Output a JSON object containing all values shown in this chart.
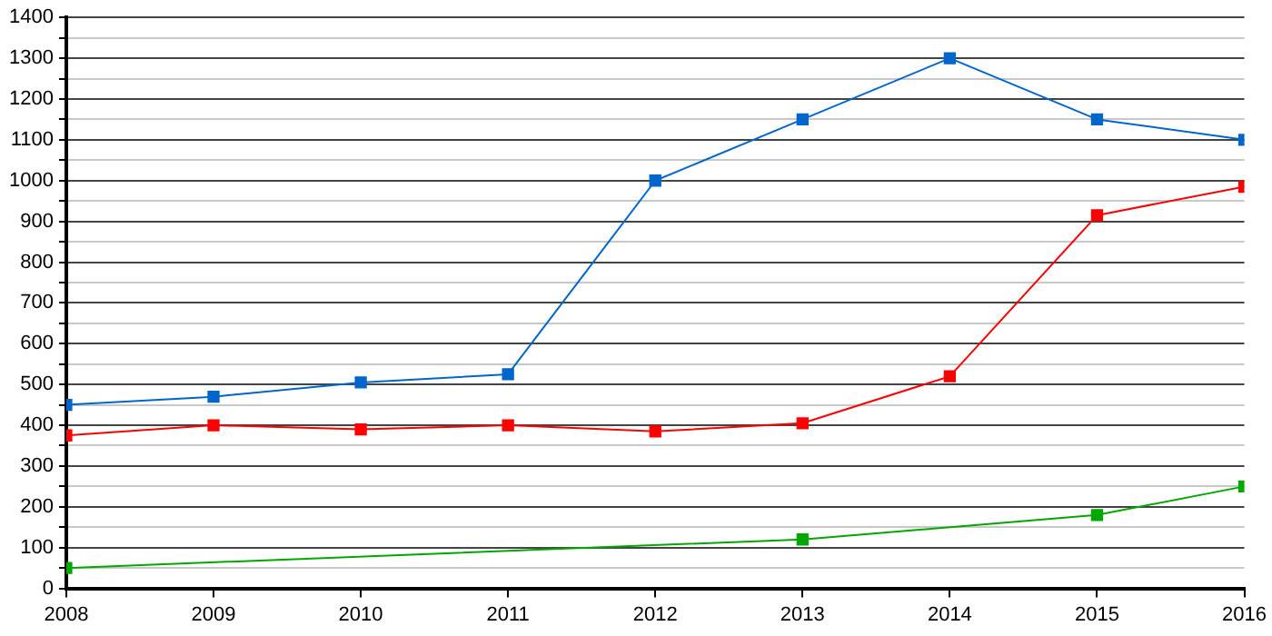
{
  "chart_data": {
    "type": "line",
    "x": [
      2008,
      2009,
      2010,
      2011,
      2012,
      2013,
      2014,
      2015,
      2016
    ],
    "series": [
      {
        "color": "#0066cc",
        "values": [
          450,
          470,
          505,
          525,
          1000,
          1150,
          1300,
          1150,
          1100
        ]
      },
      {
        "color": "#ff0000",
        "values": [
          375,
          400,
          390,
          400,
          385,
          405,
          520,
          915,
          985
        ]
      },
      {
        "color": "#00a800",
        "x": [
          2008,
          2013,
          2015,
          2016
        ],
        "values": [
          50,
          120,
          180,
          250
        ]
      }
    ],
    "xlim": [
      2008,
      2016
    ],
    "xticks": [
      2008,
      2009,
      2010,
      2011,
      2012,
      2013,
      2014,
      2015,
      2016
    ],
    "ylim": [
      0,
      1400
    ],
    "yticks": [
      0,
      {
        "value": 50,
        "label": null
      },
      100,
      {
        "value": 150,
        "label": null
      },
      200,
      {
        "value": 250,
        "label": null
      },
      300,
      {
        "value": 350,
        "label": null
      },
      400,
      {
        "value": 450,
        "label": null
      },
      500,
      {
        "value": 550,
        "label": null
      },
      600,
      {
        "value": 650,
        "label": null
      },
      700,
      {
        "value": 750,
        "label": null
      },
      800,
      {
        "value": 850,
        "label": null
      },
      900,
      {
        "value": 950,
        "label": null
      },
      1000,
      {
        "value": 1050,
        "label": null
      },
      1100,
      {
        "value": 1150,
        "label": null
      },
      1200,
      {
        "value": 1250,
        "label": null
      },
      1300,
      {
        "value": 1350,
        "label": null
      },
      1400
    ],
    "grid": "y",
    "legend": false,
    "marker": "square",
    "line_style": "solid"
  }
}
